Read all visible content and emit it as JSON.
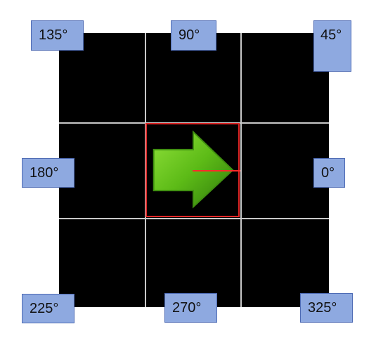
{
  "labels": {
    "deg_135": "135°",
    "deg_90": "90°",
    "deg_45": "45°",
    "deg_180": "180°",
    "deg_0": "0°",
    "deg_225": "225°",
    "deg_270": "270°",
    "deg_325": "325°"
  },
  "colors": {
    "grid_background": "#000000",
    "grid_lines": "#c8c8c8",
    "center_cell_border": "#e02626",
    "arrow_fill": "#5dbb17",
    "heading_line": "#ff2a2a",
    "label_fill": "#8ea9e0",
    "label_border": "#4e6bb4"
  },
  "icons": {
    "center": "green-arrow-right-icon"
  }
}
